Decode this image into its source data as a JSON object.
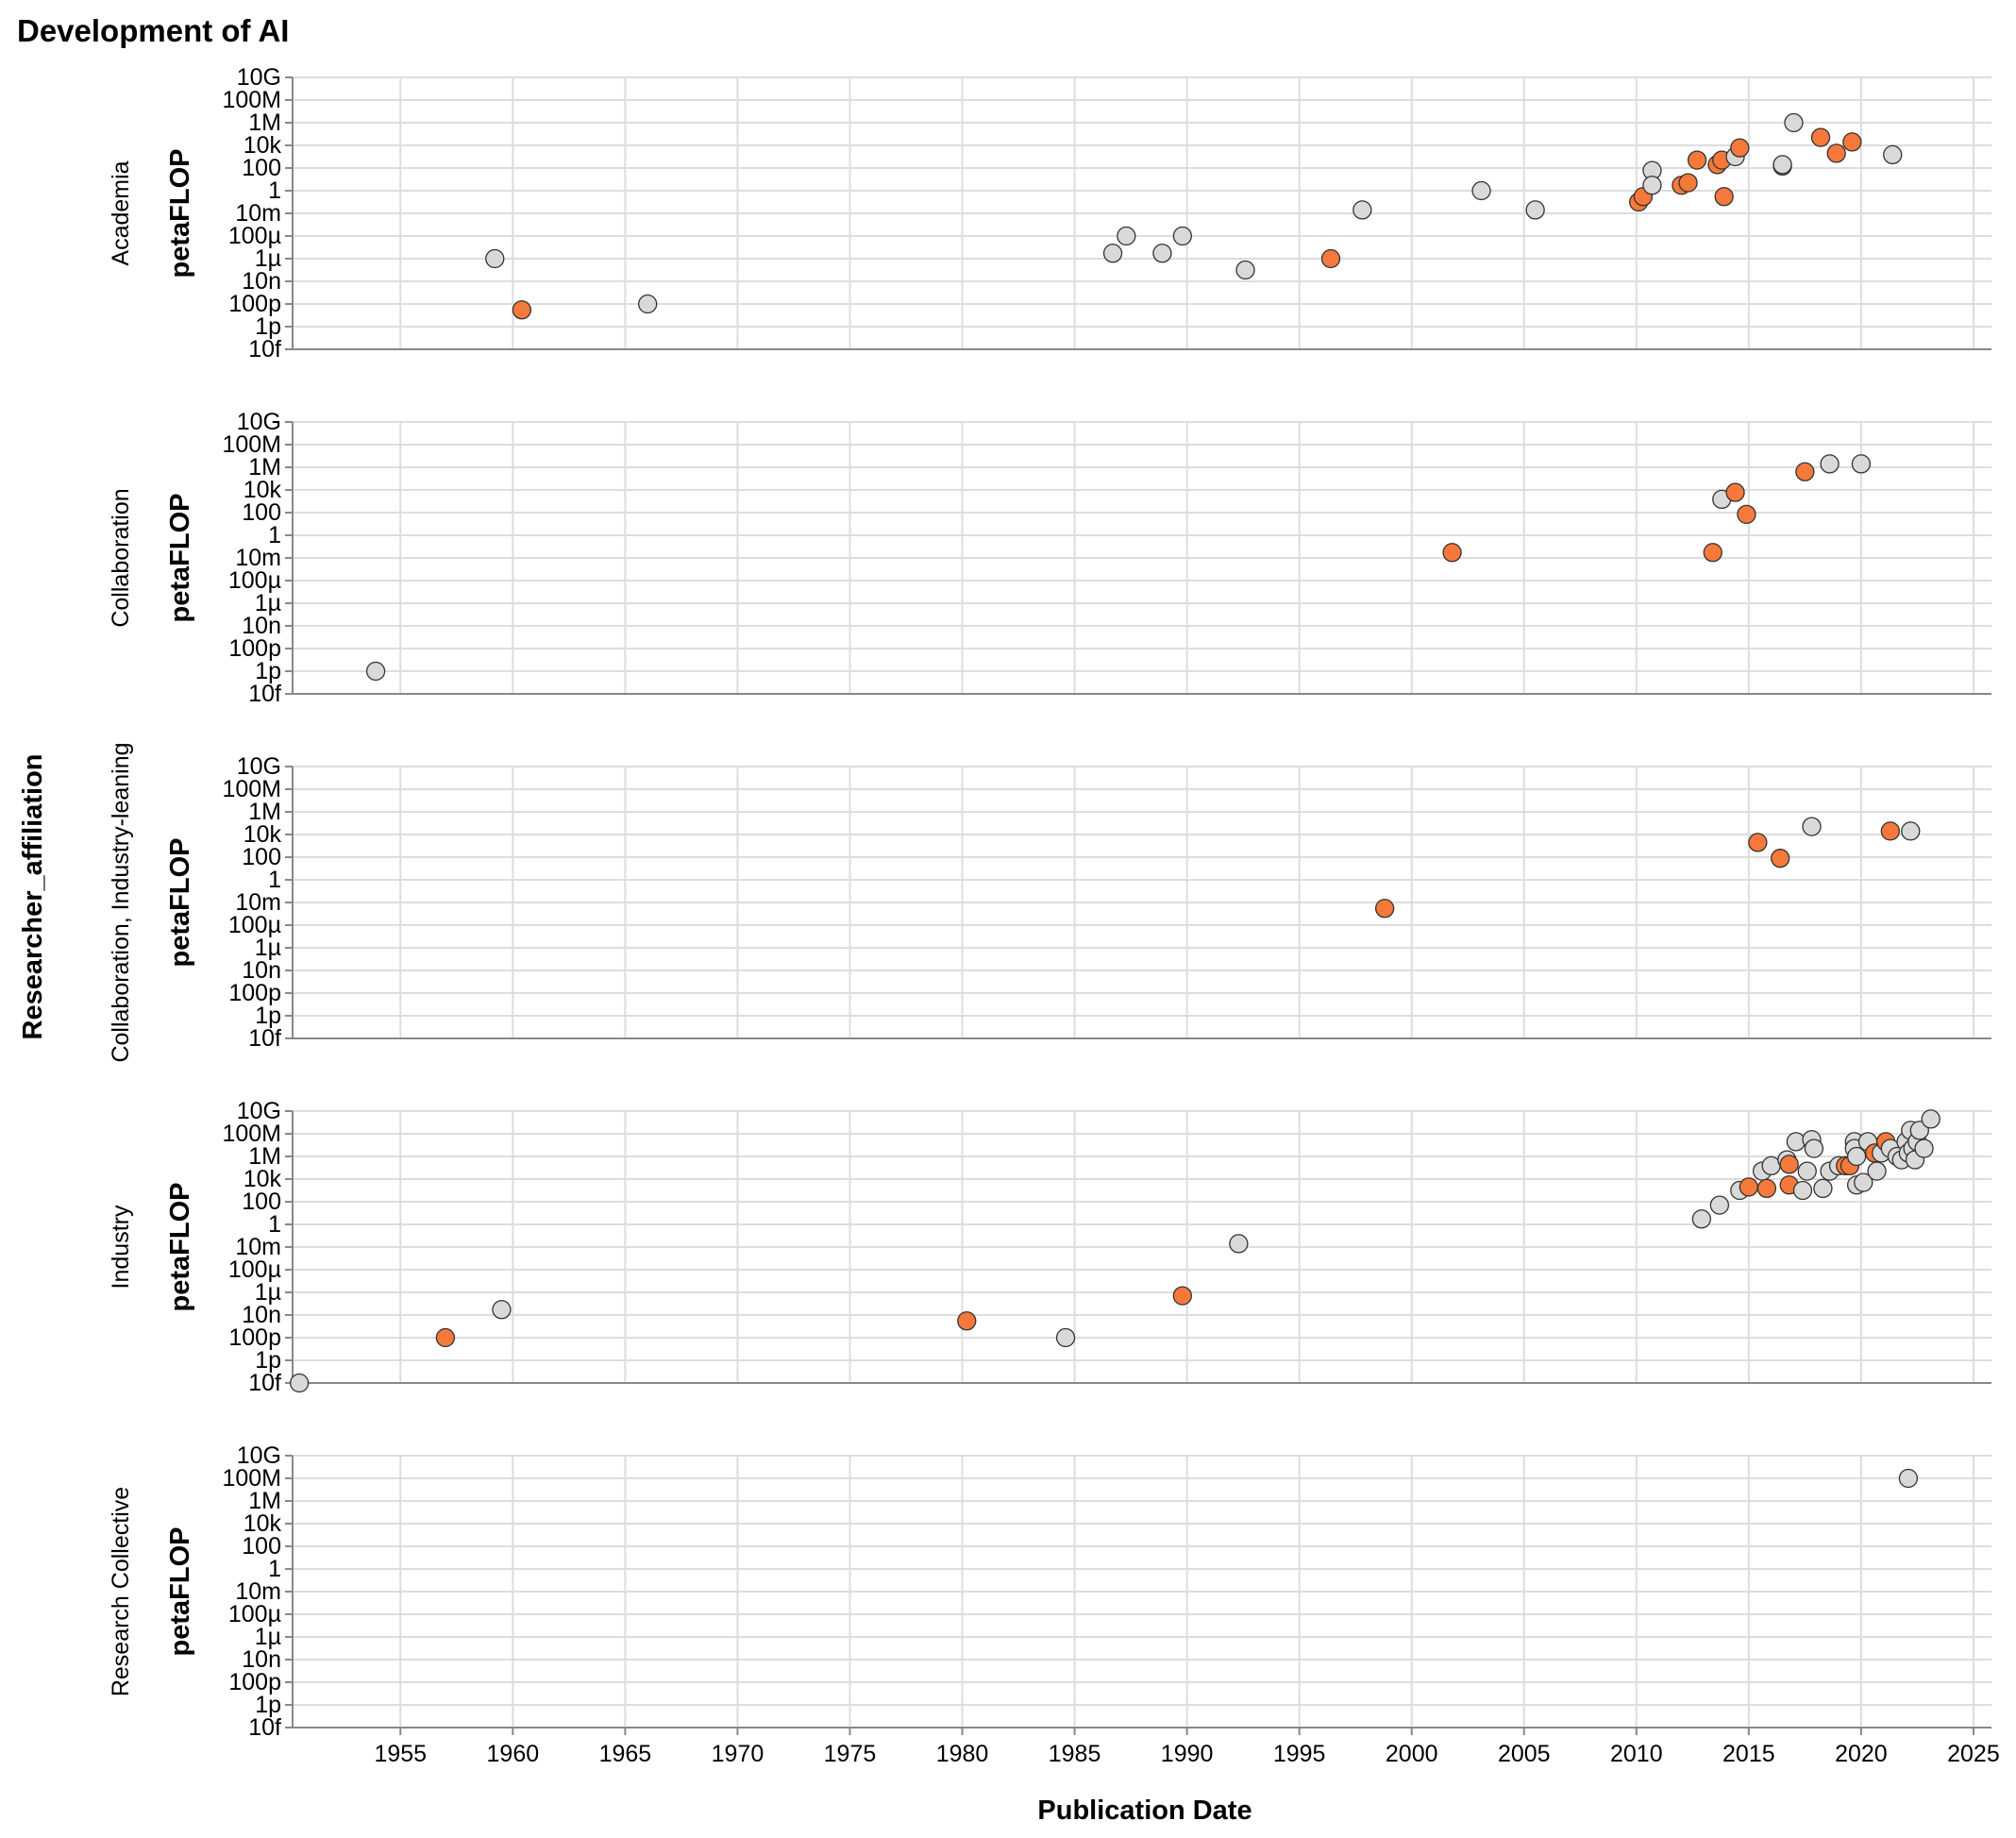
{
  "chart_data": {
    "type": "scatter",
    "title": "Development of AI",
    "xlabel": "Publication Date",
    "ylabel": "petaFLOP",
    "row_label": "Researcher_affiliation",
    "x_ticks": [
      "1955",
      "1960",
      "1965",
      "1970",
      "1975",
      "1980",
      "1985",
      "1990",
      "1995",
      "2000",
      "2005",
      "2010",
      "2015",
      "2020",
      "2025"
    ],
    "xlim": [
      1950.2,
      2025.8
    ],
    "y_scale": "log",
    "y_ticks": [
      "10G",
      "100M",
      "1M",
      "10k",
      "100",
      "1",
      "10m",
      "100µ",
      "1µ",
      "10n",
      "100p",
      "1p",
      "10f"
    ],
    "ylim": [
      "10f",
      "10G"
    ],
    "grid": true,
    "colors": {
      "gray": "#d9d9d9",
      "orange": "#f5793a",
      "stroke": "#333333"
    },
    "facets": [
      {
        "name": "Academia",
        "points": [
          {
            "x": 1959.2,
            "y": "1µ",
            "color": "gray"
          },
          {
            "x": 1960.4,
            "y": "30p",
            "color": "orange"
          },
          {
            "x": 1966.0,
            "y": "100p",
            "color": "gray"
          },
          {
            "x": 1986.7,
            "y": "3µ",
            "color": "gray"
          },
          {
            "x": 1987.3,
            "y": "100µ",
            "color": "gray"
          },
          {
            "x": 1988.9,
            "y": "3µ",
            "color": "gray"
          },
          {
            "x": 1989.8,
            "y": "100µ",
            "color": "gray"
          },
          {
            "x": 1992.6,
            "y": "100n",
            "color": "gray"
          },
          {
            "x": 1996.4,
            "y": "1µ",
            "color": "orange"
          },
          {
            "x": 1997.8,
            "y": "20m",
            "color": "gray"
          },
          {
            "x": 2003.1,
            "y": "1",
            "color": "gray"
          },
          {
            "x": 2005.5,
            "y": "20m",
            "color": "gray"
          },
          {
            "x": 2010.1,
            "y": "0.1",
            "color": "orange"
          },
          {
            "x": 2010.3,
            "y": "0.3",
            "color": "orange"
          },
          {
            "x": 2010.7,
            "y": "60",
            "color": "gray"
          },
          {
            "x": 2010.7,
            "y": "3",
            "color": "gray"
          },
          {
            "x": 2012.0,
            "y": "3",
            "color": "orange"
          },
          {
            "x": 2012.3,
            "y": "5",
            "color": "orange"
          },
          {
            "x": 2012.7,
            "y": "500",
            "color": "orange"
          },
          {
            "x": 2013.6,
            "y": "200",
            "color": "orange"
          },
          {
            "x": 2013.8,
            "y": "500",
            "color": "orange"
          },
          {
            "x": 2013.9,
            "y": "0.3",
            "color": "orange"
          },
          {
            "x": 2014.4,
            "y": "1k",
            "color": "gray"
          },
          {
            "x": 2014.6,
            "y": "6k",
            "color": "orange"
          },
          {
            "x": 2016.5,
            "y": "150",
            "color": "gray"
          },
          {
            "x": 2016.5,
            "y": "200",
            "color": "gray"
          },
          {
            "x": 2017.0,
            "y": "1M",
            "color": "gray"
          },
          {
            "x": 2018.2,
            "y": "50k",
            "color": "orange"
          },
          {
            "x": 2018.9,
            "y": "2k",
            "color": "orange"
          },
          {
            "x": 2019.6,
            "y": "20k",
            "color": "orange"
          },
          {
            "x": 2021.4,
            "y": "1.5k",
            "color": "gray"
          }
        ]
      },
      {
        "name": "Collaboration",
        "points": [
          {
            "x": 1953.9,
            "y": "1p",
            "color": "gray"
          },
          {
            "x": 2001.8,
            "y": "30m",
            "color": "orange"
          },
          {
            "x": 2013.4,
            "y": "30m",
            "color": "orange"
          },
          {
            "x": 2013.8,
            "y": "1.5k",
            "color": "gray"
          },
          {
            "x": 2014.4,
            "y": "6k",
            "color": "orange"
          },
          {
            "x": 2014.9,
            "y": "70",
            "color": "orange"
          },
          {
            "x": 2017.5,
            "y": "400k",
            "color": "orange"
          },
          {
            "x": 2018.6,
            "y": "2M",
            "color": "gray"
          },
          {
            "x": 2020.0,
            "y": "2M",
            "color": "gray"
          }
        ]
      },
      {
        "name": "Collaboration, Industry-leaning",
        "points": [
          {
            "x": 1998.8,
            "y": "3m",
            "color": "orange"
          },
          {
            "x": 2015.4,
            "y": "2k",
            "color": "orange"
          },
          {
            "x": 2016.4,
            "y": "80",
            "color": "orange"
          },
          {
            "x": 2017.8,
            "y": "50k",
            "color": "gray"
          },
          {
            "x": 2021.3,
            "y": "20k",
            "color": "orange"
          },
          {
            "x": 2022.2,
            "y": "20k",
            "color": "gray"
          }
        ]
      },
      {
        "name": "Industry",
        "points": [
          {
            "x": 1950.5,
            "y": "10f",
            "color": "gray"
          },
          {
            "x": 1957.0,
            "y": "100p",
            "color": "orange"
          },
          {
            "x": 1959.5,
            "y": "30n",
            "color": "gray"
          },
          {
            "x": 1980.2,
            "y": "3n",
            "color": "orange"
          },
          {
            "x": 1984.6,
            "y": "100p",
            "color": "gray"
          },
          {
            "x": 1989.8,
            "y": "500n",
            "color": "orange"
          },
          {
            "x": 1992.3,
            "y": "20m",
            "color": "gray"
          },
          {
            "x": 2012.9,
            "y": "3",
            "color": "gray"
          },
          {
            "x": 2013.7,
            "y": "50",
            "color": "gray"
          },
          {
            "x": 2014.6,
            "y": "1k",
            "color": "gray"
          },
          {
            "x": 2015.0,
            "y": "2k",
            "color": "orange"
          },
          {
            "x": 2015.6,
            "y": "50k",
            "color": "gray"
          },
          {
            "x": 2015.8,
            "y": "1.5k",
            "color": "orange"
          },
          {
            "x": 2016.0,
            "y": "150k",
            "color": "gray"
          },
          {
            "x": 2016.7,
            "y": "500k",
            "color": "gray"
          },
          {
            "x": 2016.8,
            "y": "200k",
            "color": "orange"
          },
          {
            "x": 2016.8,
            "y": "3k",
            "color": "orange"
          },
          {
            "x": 2017.1,
            "y": "20M",
            "color": "gray"
          },
          {
            "x": 2017.4,
            "y": "1k",
            "color": "gray"
          },
          {
            "x": 2017.6,
            "y": "50k",
            "color": "gray"
          },
          {
            "x": 2017.8,
            "y": "30M",
            "color": "gray"
          },
          {
            "x": 2017.9,
            "y": "5M",
            "color": "gray"
          },
          {
            "x": 2018.3,
            "y": "1.5k",
            "color": "gray"
          },
          {
            "x": 2018.6,
            "y": "50k",
            "color": "gray"
          },
          {
            "x": 2019.0,
            "y": "150k",
            "color": "gray"
          },
          {
            "x": 2019.3,
            "y": "150k",
            "color": "orange"
          },
          {
            "x": 2019.5,
            "y": "150k",
            "color": "orange"
          },
          {
            "x": 2019.7,
            "y": "20M",
            "color": "gray"
          },
          {
            "x": 2019.7,
            "y": "5M",
            "color": "gray"
          },
          {
            "x": 2019.8,
            "y": "1M",
            "color": "gray"
          },
          {
            "x": 2019.8,
            "y": "3k",
            "color": "gray"
          },
          {
            "x": 2020.1,
            "y": "5k",
            "color": "gray"
          },
          {
            "x": 2020.3,
            "y": "20M",
            "color": "gray"
          },
          {
            "x": 2020.6,
            "y": "2M",
            "color": "orange"
          },
          {
            "x": 2020.7,
            "y": "50k",
            "color": "gray"
          },
          {
            "x": 2020.9,
            "y": "2M",
            "color": "gray"
          },
          {
            "x": 2021.1,
            "y": "20M",
            "color": "orange"
          },
          {
            "x": 2021.3,
            "y": "5M",
            "color": "gray"
          },
          {
            "x": 2021.6,
            "y": "1M",
            "color": "gray"
          },
          {
            "x": 2021.8,
            "y": "500k",
            "color": "gray"
          },
          {
            "x": 2022.0,
            "y": "20M",
            "color": "gray"
          },
          {
            "x": 2022.1,
            "y": "2M",
            "color": "gray"
          },
          {
            "x": 2022.2,
            "y": "200M",
            "color": "gray"
          },
          {
            "x": 2022.3,
            "y": "5M",
            "color": "gray"
          },
          {
            "x": 2022.4,
            "y": "500k",
            "color": "gray"
          },
          {
            "x": 2022.5,
            "y": "20M",
            "color": "gray"
          },
          {
            "x": 2022.6,
            "y": "200M",
            "color": "gray"
          },
          {
            "x": 2022.8,
            "y": "5M",
            "color": "gray"
          },
          {
            "x": 2023.1,
            "y": "2G",
            "color": "gray"
          }
        ]
      },
      {
        "name": "Research Collective",
        "points": [
          {
            "x": 2022.1,
            "y": "100M",
            "color": "gray"
          }
        ]
      }
    ]
  }
}
